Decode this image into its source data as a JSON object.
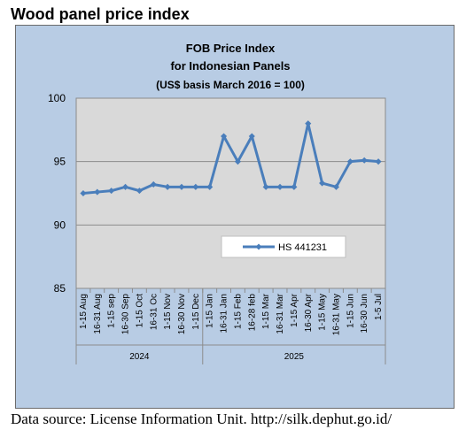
{
  "page": {
    "title": "Wood panel price index",
    "source": "Data source: License Information Unit. http://silk.dephut.go.id/"
  },
  "chart_data": {
    "type": "line",
    "title": "FOB Price Index",
    "subtitle1": "for Indonesian Panels",
    "subtitle2": "(US$ basis March 2016 = 100)",
    "categories": [
      "1-15 Aug",
      "16-31 Aug",
      "1-15 sep",
      "16-30 Sep",
      "1-15 Oct",
      "16-31 Oc",
      "1-15 Nov",
      "16-30 Nov",
      "1-15 Dec",
      "1-15 Jan",
      "16-31 Jan",
      "1-15 Feb",
      "16-28 feb",
      "1-15 Mar",
      "16-31 Mar",
      "1-15 Apr",
      "16-30 Apr",
      "1-15 May",
      "16-31 May",
      "1-15 Jun",
      "16-30 Jun",
      "1-5 Jul"
    ],
    "groups": [
      {
        "label": "2024",
        "start": 0,
        "end": 8
      },
      {
        "label": "2025",
        "start": 9,
        "end": 21
      }
    ],
    "series": [
      {
        "name": "HS 441231",
        "color": "#4a7ebb",
        "values": [
          92.5,
          92.6,
          92.7,
          93.0,
          92.7,
          93.2,
          93.0,
          93.0,
          93.0,
          93.0,
          97.0,
          95.0,
          97.0,
          93.0,
          93.0,
          93.0,
          98.0,
          93.3,
          93.0,
          95.0,
          95.1,
          95.0
        ]
      }
    ],
    "ylim": [
      85,
      100
    ],
    "yticks": [
      "85",
      "90",
      "95",
      "100"
    ],
    "grid": true,
    "legend": "inside-lower-right",
    "colors": {
      "plot_bg": "#d9d9d9",
      "frame_bg": "#b8cce4",
      "line": "#4a7ebb"
    }
  }
}
